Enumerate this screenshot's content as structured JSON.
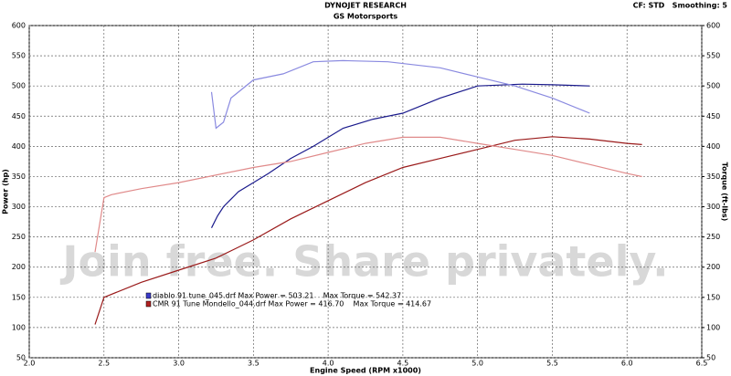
{
  "chart_data": {
    "type": "line",
    "title": "DYNOJET RESEARCH",
    "subtitle": "GS Motorsports",
    "settings_text": "CF: STD   Smoothing: 5",
    "watermark": "Join free. Share privately.",
    "xlabel": "Engine Speed (RPM x1000)",
    "ylabel": "Power (hp)",
    "y2label": "Torque (ft-lbs)",
    "grid": true,
    "xlim": [
      2.0,
      6.5
    ],
    "xticks": [
      {
        "value": 2,
        "label": "2.0"
      },
      2.5,
      {
        "value": 3,
        "label": "3.0"
      },
      3.5,
      {
        "value": 4,
        "label": "4.0"
      },
      4.5,
      {
        "value": 5,
        "label": "5.0"
      },
      5.5,
      {
        "value": 6,
        "label": "6.0"
      },
      6.5
    ],
    "ylim": [
      50,
      600
    ],
    "yticks": [
      50,
      100,
      150,
      200,
      250,
      300,
      350,
      400,
      450,
      500,
      550,
      600
    ],
    "y2lim": [
      50,
      600
    ],
    "y2ticks": [
      50,
      100,
      150,
      200,
      250,
      300,
      350,
      400,
      450,
      500,
      550,
      600
    ],
    "legend": [
      {
        "text": "diablo 91 tune_045.drf Max Power = 503.21    Max Torque = 542.37",
        "color": "#3a3ac8"
      },
      {
        "text": "CMR 91 Tune Mondello_044.drf Max Power = 416.70    Max Torque = 414.67",
        "color": "#b02020"
      }
    ],
    "series": [
      {
        "color": "#1a1a8c",
        "x": [
          3.22,
          3.26,
          3.3,
          3.4,
          3.5,
          3.6,
          3.75,
          3.9,
          4.1,
          4.3,
          4.5,
          4.75,
          5.0,
          5.3,
          5.5,
          5.75
        ],
        "values": [
          265,
          285,
          300,
          325,
          340,
          355,
          380,
          400,
          430,
          445,
          455,
          480,
          500,
          503,
          502,
          500
        ]
      },
      {
        "color": "#8a8ae0",
        "axis": "y2",
        "x": [
          3.22,
          3.25,
          3.3,
          3.35,
          3.5,
          3.7,
          3.9,
          4.1,
          4.4,
          4.75,
          5.0,
          5.25,
          5.5,
          5.75
        ],
        "values": [
          490,
          430,
          440,
          480,
          510,
          520,
          540,
          542,
          540,
          530,
          515,
          500,
          480,
          455
        ]
      },
      {
        "color": "#9a1a1a",
        "x": [
          2.44,
          2.5,
          2.75,
          3.0,
          3.25,
          3.5,
          3.75,
          4.0,
          4.25,
          4.5,
          4.75,
          5.0,
          5.25,
          5.5,
          5.75,
          6.0,
          6.1
        ],
        "values": [
          105,
          150,
          175,
          195,
          215,
          245,
          280,
          310,
          340,
          365,
          380,
          395,
          410,
          416,
          412,
          405,
          403
        ]
      },
      {
        "color": "#e08a8a",
        "axis": "y2",
        "x": [
          2.44,
          2.5,
          2.55,
          2.75,
          3.0,
          3.5,
          3.75,
          4.0,
          4.25,
          4.5,
          4.75,
          5.0,
          5.25,
          5.5,
          5.75,
          6.0,
          6.1
        ],
        "values": [
          225,
          315,
          320,
          330,
          340,
          365,
          375,
          390,
          405,
          415,
          415,
          405,
          395,
          385,
          370,
          355,
          350
        ]
      }
    ]
  }
}
